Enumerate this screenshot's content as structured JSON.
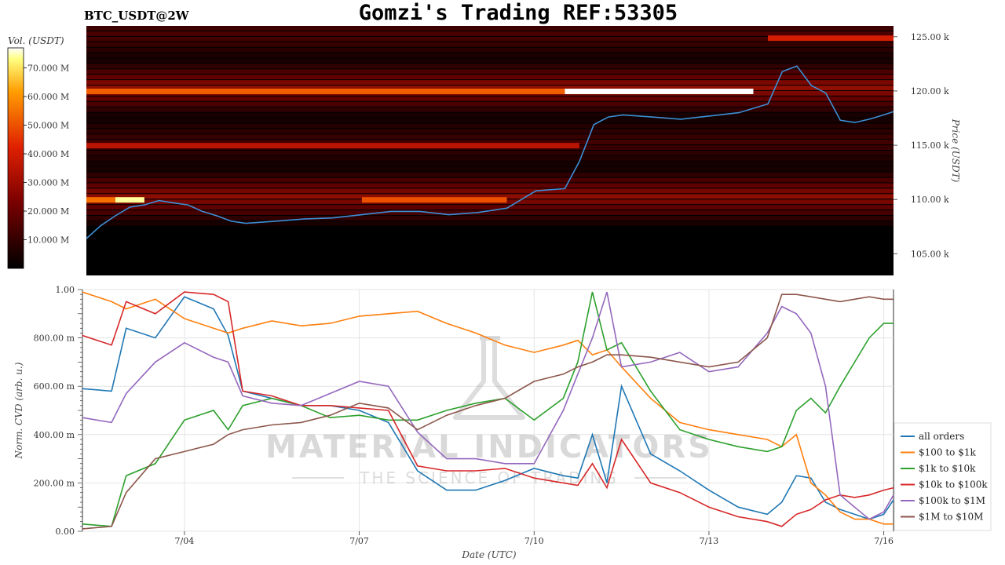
{
  "symbol": "BTC_USDT@2W",
  "title": "Gomzi's Trading REF:53305",
  "watermark": {
    "main": "MATERIAL INDICATORS",
    "sub": "THE SCIENCE OF TRADING"
  },
  "colorbar": {
    "label": "Vol. (USDT)",
    "ticks": [
      "10.000 M",
      "20.000 M",
      "30.000 M",
      "40.000 M",
      "50.000 M",
      "60.000 M",
      "70.000 M"
    ],
    "tick_values": [
      10,
      20,
      30,
      40,
      50,
      60,
      70
    ],
    "range": [
      0,
      77
    ]
  },
  "chart_data": [
    {
      "type": "heatmap",
      "title": "Gomzi's Trading REF:53305",
      "ylabel": "Price (USDT)",
      "ylim": [
        103000,
        126000
      ],
      "yticks": [
        105000,
        110000,
        115000,
        120000,
        125000
      ],
      "ytick_labels": [
        "105.00 k",
        "110.00 k",
        "115.00 k",
        "120.00 k",
        "125.00 k"
      ],
      "x_range": [
        "7/02 06:00",
        "7/16 04:00"
      ],
      "price_series": {
        "name": "price",
        "x": [
          "7/02 06:00",
          "7/02 12:00",
          "7/02 18:00",
          "7/03 00:00",
          "7/03 06:00",
          "7/03 12:00",
          "7/03 18:00",
          "7/04 00:00",
          "7/04 06:00",
          "7/04 12:00",
          "7/04 18:00",
          "7/05 00:00",
          "7/05 12:00",
          "7/06 00:00",
          "7/06 12:00",
          "7/07 00:00",
          "7/07 12:00",
          "7/08 00:00",
          "7/08 12:00",
          "7/09 00:00",
          "7/09 12:00",
          "7/10 00:00",
          "7/10 12:00",
          "7/10 18:00",
          "7/11 00:00",
          "7/11 06:00",
          "7/11 12:00",
          "7/12 00:00",
          "7/12 12:00",
          "7/13 00:00",
          "7/13 12:00",
          "7/14 00:00",
          "7/14 06:00",
          "7/14 12:00",
          "7/14 18:00",
          "7/15 00:00",
          "7/15 06:00",
          "7/15 12:00",
          "7/15 18:00",
          "7/16 00:00",
          "7/16 04:00"
        ],
        "y": [
          106400,
          107600,
          108500,
          109300,
          109500,
          109900,
          109700,
          109500,
          108900,
          108500,
          108000,
          107800,
          108000,
          108200,
          108300,
          108600,
          108900,
          108900,
          108600,
          108800,
          109200,
          110800,
          111000,
          113500,
          116900,
          117600,
          117800,
          117600,
          117400,
          117700,
          118000,
          118800,
          121800,
          122300,
          120500,
          119800,
          117300,
          117100,
          117400,
          117800,
          118100
        ]
      },
      "liquidity_bands": [
        {
          "price": 124900,
          "from": "7/14 00:00",
          "to": "7/16 04:00",
          "level": 40
        },
        {
          "price": 120000,
          "from": "7/02 06:00",
          "to": "7/10 12:00",
          "level": 52
        },
        {
          "price": 120000,
          "from": "7/10 12:00",
          "to": "7/13 18:00",
          "level": 77
        },
        {
          "price": 115000,
          "from": "7/02 06:00",
          "to": "7/10 18:00",
          "level": 35
        },
        {
          "price": 110000,
          "from": "7/02 06:00",
          "to": "7/02 18:00",
          "level": 55
        },
        {
          "price": 110000,
          "from": "7/02 18:00",
          "to": "7/03 06:00",
          "level": 74
        },
        {
          "price": 110000,
          "from": "7/07 00:00",
          "to": "7/09 12:00",
          "level": 50
        }
      ]
    },
    {
      "type": "line",
      "xlabel": "Date (UTC)",
      "ylabel": "Norm. CVD (arb. u.)",
      "ylim": [
        0,
        1
      ],
      "yticks": [
        0,
        0.2,
        0.4,
        0.6,
        0.8,
        1.0
      ],
      "ytick_labels": [
        "0.00",
        "200.00 m",
        "400.00 m",
        "600.00 m",
        "800.00 m",
        "1.00"
      ],
      "xticks": [
        "7/04",
        "7/07",
        "7/10",
        "7/13",
        "7/16"
      ],
      "x": [
        "7/02 06:00",
        "7/02 18:00",
        "7/03 00:00",
        "7/03 12:00",
        "7/04 00:00",
        "7/04 12:00",
        "7/04 18:00",
        "7/05 00:00",
        "7/05 12:00",
        "7/06 00:00",
        "7/06 12:00",
        "7/07 00:00",
        "7/07 12:00",
        "7/08 00:00",
        "7/08 12:00",
        "7/09 00:00",
        "7/09 12:00",
        "7/10 00:00",
        "7/10 12:00",
        "7/10 18:00",
        "7/11 00:00",
        "7/11 06:00",
        "7/11 12:00",
        "7/12 00:00",
        "7/12 12:00",
        "7/13 00:00",
        "7/13 12:00",
        "7/14 00:00",
        "7/14 06:00",
        "7/14 12:00",
        "7/14 18:00",
        "7/15 00:00",
        "7/15 06:00",
        "7/15 12:00",
        "7/15 18:00",
        "7/16 00:00",
        "7/16 04:00"
      ],
      "legend": "right",
      "series": [
        {
          "name": "all orders",
          "color": "#1f77b4",
          "values": [
            0.59,
            0.58,
            0.84,
            0.8,
            0.97,
            0.92,
            0.81,
            0.58,
            0.55,
            0.52,
            0.52,
            0.5,
            0.45,
            0.25,
            0.17,
            0.17,
            0.21,
            0.26,
            0.23,
            0.22,
            0.4,
            0.2,
            0.6,
            0.32,
            0.25,
            0.17,
            0.1,
            0.07,
            0.12,
            0.23,
            0.22,
            0.12,
            0.09,
            0.07,
            0.05,
            0.07,
            0.13
          ]
        },
        {
          "name": "$100 to $1k",
          "color": "#ff7f0e",
          "values": [
            0.99,
            0.95,
            0.92,
            0.96,
            0.88,
            0.84,
            0.82,
            0.84,
            0.87,
            0.85,
            0.86,
            0.89,
            0.9,
            0.91,
            0.86,
            0.82,
            0.77,
            0.74,
            0.77,
            0.79,
            0.73,
            0.75,
            0.68,
            0.55,
            0.45,
            0.42,
            0.4,
            0.38,
            0.35,
            0.4,
            0.2,
            0.15,
            0.08,
            0.05,
            0.05,
            0.03,
            0.03
          ]
        },
        {
          "name": "$1k to $10k",
          "color": "#2ca02c",
          "values": [
            0.03,
            0.02,
            0.23,
            0.28,
            0.46,
            0.5,
            0.42,
            0.52,
            0.55,
            0.52,
            0.47,
            0.48,
            0.46,
            0.46,
            0.5,
            0.53,
            0.55,
            0.46,
            0.55,
            0.7,
            0.99,
            0.75,
            0.78,
            0.58,
            0.42,
            0.38,
            0.35,
            0.33,
            0.35,
            0.5,
            0.55,
            0.49,
            0.6,
            0.7,
            0.8,
            0.86,
            0.86
          ]
        },
        {
          "name": "$10k to $100k",
          "color": "#d62728",
          "values": [
            0.81,
            0.77,
            0.95,
            0.9,
            0.99,
            0.98,
            0.95,
            0.58,
            0.56,
            0.52,
            0.52,
            0.51,
            0.5,
            0.27,
            0.25,
            0.25,
            0.26,
            0.22,
            0.2,
            0.19,
            0.28,
            0.18,
            0.38,
            0.2,
            0.16,
            0.1,
            0.06,
            0.04,
            0.02,
            0.07,
            0.09,
            0.13,
            0.15,
            0.14,
            0.15,
            0.17,
            0.18
          ]
        },
        {
          "name": "$100k to $1M",
          "color": "#9467bd",
          "values": [
            0.47,
            0.45,
            0.57,
            0.7,
            0.78,
            0.72,
            0.7,
            0.56,
            0.53,
            0.52,
            0.57,
            0.62,
            0.6,
            0.41,
            0.3,
            0.3,
            0.28,
            0.28,
            0.5,
            0.65,
            0.8,
            0.99,
            0.68,
            0.7,
            0.74,
            0.66,
            0.68,
            0.82,
            0.93,
            0.9,
            0.82,
            0.6,
            0.15,
            0.1,
            0.05,
            0.08,
            0.15
          ]
        },
        {
          "name": "$1M to $10M",
          "color": "#8c564b",
          "values": [
            0.01,
            0.02,
            0.16,
            0.3,
            0.33,
            0.36,
            0.4,
            0.42,
            0.44,
            0.45,
            0.48,
            0.53,
            0.51,
            0.42,
            0.48,
            0.52,
            0.55,
            0.62,
            0.65,
            0.68,
            0.7,
            0.73,
            0.73,
            0.72,
            0.7,
            0.68,
            0.7,
            0.8,
            0.98,
            0.98,
            0.97,
            0.96,
            0.95,
            0.96,
            0.97,
            0.96,
            0.96
          ]
        }
      ]
    }
  ]
}
